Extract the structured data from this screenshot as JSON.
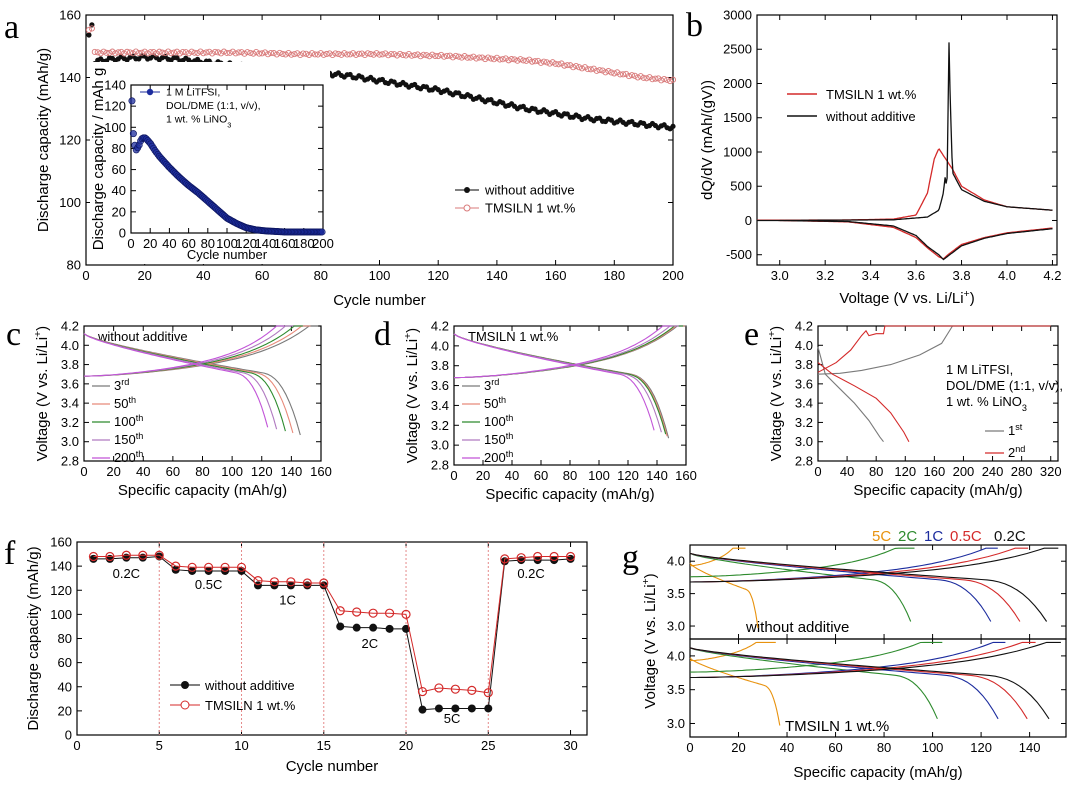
{
  "colors": {
    "red": "#d42a2a",
    "pink": "#d97a7a",
    "black": "#111111",
    "blue": "#1c2c9e",
    "green": "#2e8b2e",
    "orange": "#e8920e",
    "purple": "#c255d8",
    "gray": "#7a7a7a",
    "salmon": "#e88a7a",
    "mauve": "#b07ac0"
  },
  "chart_data": [
    {
      "id": "a",
      "panel_label": "a",
      "type": "scatter",
      "xlabel": "Cycle number",
      "ylabel": "Discharge capacity (mAh/g)",
      "xlim": [
        0,
        200
      ],
      "ylim": [
        80,
        160
      ],
      "xticks": [
        0,
        20,
        40,
        60,
        80,
        100,
        120,
        140,
        160,
        180,
        200
      ],
      "yticks": [
        80,
        100,
        120,
        140,
        160
      ],
      "series": [
        {
          "name": "without additive",
          "color": "black",
          "x": [
            1,
            2,
            3,
            5,
            10,
            20,
            30,
            40,
            50,
            60,
            70,
            80,
            90,
            100,
            110,
            120,
            130,
            140,
            150,
            160,
            170,
            180,
            190,
            200
          ],
          "y": [
            153,
            157,
            145,
            145.5,
            146,
            146.5,
            146,
            145,
            144,
            143,
            142.5,
            141.5,
            140.5,
            139,
            137.5,
            136,
            134,
            132,
            130,
            128.5,
            127,
            126,
            125,
            124
          ]
        },
        {
          "name": "TMSILN 1 wt.%",
          "color": "pink",
          "x": [
            1,
            2,
            3,
            5,
            10,
            20,
            30,
            40,
            50,
            60,
            70,
            80,
            90,
            100,
            110,
            120,
            130,
            140,
            150,
            160,
            170,
            180,
            190,
            200
          ],
          "y": [
            155,
            156,
            148,
            148,
            148,
            148,
            148,
            148,
            148,
            147.8,
            147.5,
            147.5,
            147.5,
            147.5,
            147.2,
            147,
            146.5,
            146,
            145.5,
            144.5,
            143,
            141.5,
            140,
            139
          ]
        }
      ],
      "legend": [
        "without additive",
        "TMSILN 1 wt.%"
      ],
      "inset": {
        "type": "scatter",
        "xlabel": "Cycle number",
        "ylabel": "Discharge capacity / mAh g",
        "xlim": [
          0,
          200
        ],
        "ylim": [
          0,
          140
        ],
        "xticks": [
          0,
          20,
          40,
          60,
          80,
          100,
          120,
          140,
          160,
          180,
          200
        ],
        "yticks": [
          0,
          20,
          40,
          60,
          80,
          100,
          120,
          140
        ],
        "legend_lines": [
          "1 M LiTFSI,",
          "DOL/DME (1:1, v/v),",
          "1 wt. % LiNO"
        ],
        "legend_sub": "3",
        "series": [
          {
            "name": "1 M LiTFSI",
            "color": "blue",
            "x": [
              1,
              2,
              3,
              5,
              8,
              10,
              12,
              15,
              20,
              25,
              30,
              40,
              50,
              60,
              70,
              80,
              90,
              100,
              110,
              120,
              130,
              140,
              150,
              160,
              180,
              200
            ],
            "y": [
              125,
              100,
              88,
              78,
              82,
              87,
              90,
              90,
              85,
              78,
              72,
              62,
              53,
              45,
              38,
              30,
              22,
              14,
              9,
              5,
              3,
              2,
              1.5,
              1,
              1,
              1
            ]
          }
        ]
      }
    },
    {
      "id": "b",
      "panel_label": "b",
      "type": "line",
      "xlabel": "Voltage (V vs. Li/Li",
      "xlabel_sup": "+",
      "xlabel_end": ")",
      "ylabel": "dQ/dV (mAh/(gV))",
      "xlim": [
        2.9,
        4.22
      ],
      "ylim": [
        -650,
        3000
      ],
      "xticks": [
        3.0,
        3.2,
        3.4,
        3.6,
        3.8,
        4.0,
        4.2
      ],
      "yticks": [
        -500,
        0,
        500,
        1000,
        1500,
        2000,
        2500,
        3000
      ],
      "legend": [
        "TMSILN 1 wt.%",
        "without additive"
      ],
      "series": [
        {
          "name": "TMSILN 1 wt.%",
          "color": "red",
          "x": [
            2.9,
            3.0,
            3.3,
            3.5,
            3.6,
            3.65,
            3.68,
            3.7,
            3.72,
            3.74,
            3.76,
            3.8,
            3.9,
            4.0,
            4.2
          ],
          "y": [
            5,
            5,
            8,
            20,
            80,
            400,
            900,
            1050,
            950,
            850,
            750,
            500,
            300,
            200,
            150
          ]
        },
        {
          "name": "TMSILN 1 wt.% discharge",
          "color": "red",
          "x": [
            2.9,
            3.0,
            3.3,
            3.5,
            3.6,
            3.65,
            3.7,
            3.72,
            3.74,
            3.8,
            3.9,
            4.0,
            4.2
          ],
          "y": [
            5,
            0,
            -20,
            -100,
            -250,
            -400,
            -530,
            -560,
            -500,
            -350,
            -250,
            -180,
            -110
          ]
        },
        {
          "name": "without additive",
          "color": "black",
          "x": [
            2.9,
            3.0,
            3.5,
            3.65,
            3.7,
            3.72,
            3.73,
            3.735,
            3.74,
            3.745,
            3.75,
            3.76,
            3.8,
            3.9,
            4.0,
            4.2
          ],
          "y": [
            0,
            0,
            10,
            50,
            150,
            400,
            700,
            300,
            1500,
            2600,
            1800,
            700,
            450,
            280,
            200,
            150
          ]
        },
        {
          "name": "without additive discharge",
          "color": "black",
          "x": [
            3.0,
            3.3,
            3.5,
            3.6,
            3.65,
            3.7,
            3.72,
            3.74,
            3.8,
            3.9,
            4.0,
            4.2
          ],
          "y": [
            0,
            -15,
            -80,
            -220,
            -380,
            -500,
            -570,
            -520,
            -370,
            -260,
            -190,
            -120
          ]
        }
      ]
    },
    {
      "id": "c",
      "panel_label": "c",
      "type": "line",
      "xlabel": "Specific capacity (mAh/g)",
      "ylabel": "Voltage (V vs. Li/Li",
      "ylabel_sup": "+",
      "ylabel_end": ")",
      "xlim": [
        0,
        160
      ],
      "ylim": [
        2.8,
        4.2
      ],
      "xticks": [
        0,
        20,
        40,
        60,
        80,
        100,
        120,
        140,
        160
      ],
      "yticks": [
        2.8,
        3.0,
        3.2,
        3.4,
        3.6,
        3.8,
        4.0,
        4.2
      ],
      "title_label": "without additive",
      "legend": [
        {
          "n": "3",
          "s": "rd"
        },
        {
          "n": "50",
          "s": "th"
        },
        {
          "n": "100",
          "s": "th"
        },
        {
          "n": "150",
          "s": "th"
        },
        {
          "n": "200",
          "s": "th"
        }
      ],
      "legend_colors": [
        "gray",
        "salmon",
        "green",
        "mauve",
        "purple"
      ],
      "capacities": [
        146,
        141,
        136,
        130,
        124
      ]
    },
    {
      "id": "d",
      "panel_label": "d",
      "type": "line",
      "xlabel": "Specific capacity (mAh/g)",
      "ylabel": "Voltage (V vs. Li/Li",
      "ylabel_sup": "+",
      "ylabel_end": ")",
      "xlim": [
        0,
        160
      ],
      "ylim": [
        2.8,
        4.2
      ],
      "xticks": [
        0,
        20,
        40,
        60,
        80,
        100,
        120,
        140,
        160
      ],
      "yticks": [
        2.8,
        3.0,
        3.2,
        3.4,
        3.6,
        3.8,
        4.0,
        4.2
      ],
      "title_label": "TMSILN 1 wt.%",
      "legend": [
        {
          "n": "3",
          "s": "rd"
        },
        {
          "n": "50",
          "s": "th"
        },
        {
          "n": "100",
          "s": "th"
        },
        {
          "n": "150",
          "s": "th"
        },
        {
          "n": "200",
          "s": "th"
        }
      ],
      "legend_colors": [
        "gray",
        "salmon",
        "green",
        "mauve",
        "purple"
      ],
      "capacities": [
        148,
        147,
        146,
        143,
        138
      ]
    },
    {
      "id": "e",
      "panel_label": "e",
      "type": "line",
      "xlabel": "Specific capacity (mAh/g)",
      "ylabel": "Voltage (V vs. Li/Li",
      "ylabel_sup": "+",
      "ylabel_end": ")",
      "xlim": [
        0,
        330
      ],
      "ylim": [
        2.8,
        4.2
      ],
      "xticks": [
        0,
        40,
        80,
        120,
        160,
        200,
        240,
        280,
        320
      ],
      "yticks": [
        2.8,
        3.0,
        3.2,
        3.4,
        3.6,
        3.8,
        4.0,
        4.2
      ],
      "note": [
        "1 M LiTFSI,",
        "DOL/DME (1:1, v/v),",
        "1 wt. % LiNO"
      ],
      "note_sub": "3",
      "legend": [
        {
          "n": "1",
          "s": "st"
        },
        {
          "n": "2",
          "s": "nd"
        }
      ],
      "legend_colors": [
        "gray",
        "red"
      ]
    },
    {
      "id": "f",
      "panel_label": "f",
      "type": "line",
      "xlabel": "Cycle number",
      "ylabel": "Discharge capacity (mAh/g)",
      "xlim": [
        0,
        31
      ],
      "ylim": [
        0,
        160
      ],
      "xticks": [
        0,
        5,
        10,
        15,
        20,
        25,
        30
      ],
      "yticks": [
        0,
        20,
        40,
        60,
        80,
        100,
        120,
        140,
        160
      ],
      "dividers": [
        5,
        10,
        15,
        20,
        25
      ],
      "rate_labels": [
        {
          "text": "0.2C",
          "x": 3.0,
          "y": 130
        },
        {
          "text": "0.5C",
          "x": 8.0,
          "y": 121
        },
        {
          "text": "1C",
          "x": 12.8,
          "y": 108
        },
        {
          "text": "2C",
          "x": 17.8,
          "y": 72
        },
        {
          "text": "5C",
          "x": 22.8,
          "y": 10
        },
        {
          "text": "0.2C",
          "x": 27.6,
          "y": 130
        }
      ],
      "legend": [
        "without additive",
        "TMSILN 1 wt.%"
      ],
      "x": [
        1,
        2,
        3,
        4,
        5,
        6,
        7,
        8,
        9,
        10,
        11,
        12,
        13,
        14,
        15,
        16,
        17,
        18,
        19,
        20,
        21,
        22,
        23,
        24,
        25,
        26,
        27,
        28,
        29,
        30
      ],
      "series": [
        {
          "name": "without additive",
          "color": "black",
          "values": [
            146,
            146,
            147,
            147,
            148,
            137,
            136,
            136,
            136,
            136,
            124,
            124,
            124,
            124,
            124,
            90,
            89,
            89,
            88,
            88,
            21,
            22,
            22,
            22,
            22,
            144,
            145,
            145,
            145,
            146
          ]
        },
        {
          "name": "TMSILN 1 wt.%",
          "color": "red",
          "values": [
            148,
            148,
            149,
            149,
            149,
            140,
            139,
            139,
            139,
            139,
            128,
            127,
            127,
            126,
            126,
            103,
            102,
            101,
            101,
            100,
            36,
            39,
            38,
            37,
            35,
            146,
            147,
            148,
            148,
            148
          ]
        }
      ]
    },
    {
      "id": "g",
      "panel_label": "g",
      "type": "line",
      "xlabel": "Specific capacity (mAh/g)",
      "ylabel": "Voltage (V vs. Li/Li",
      "ylabel_sup": "+",
      "ylabel_end": ")",
      "xlim": [
        0,
        155
      ],
      "ylim": [
        2.8,
        4.25
      ],
      "xticks": [
        0,
        20,
        40,
        60,
        80,
        100,
        120,
        140
      ],
      "yticks": [
        3.0,
        3.5,
        4.0
      ],
      "rate_header": [
        {
          "text": "5C",
          "color": "orange"
        },
        {
          "text": "2C",
          "color": "green"
        },
        {
          "text": "1C",
          "color": "blue"
        },
        {
          "text": "0.5C",
          "color": "red"
        },
        {
          "text": "0.2C",
          "color": "black"
        }
      ],
      "subplots": [
        {
          "label": "without additive",
          "capacities": [
            28,
            91,
            124,
            136,
            147
          ],
          "charge_caps": [
            22,
            89,
            122,
            134,
            146
          ]
        },
        {
          "label": "TMSILN 1 wt.%",
          "capacities": [
            37,
            102,
            127,
            139,
            148
          ],
          "charge_caps": [
            34,
            100,
            125,
            137,
            147
          ]
        }
      ]
    }
  ]
}
